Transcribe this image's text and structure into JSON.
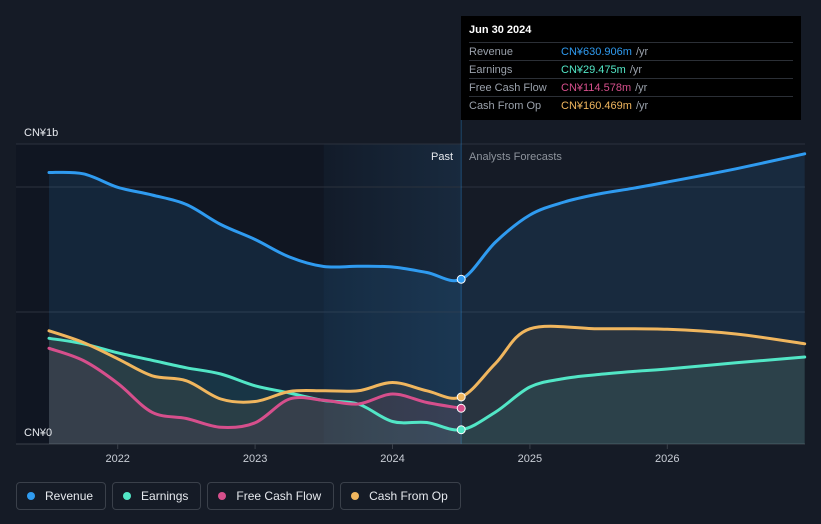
{
  "chart_data": {
    "type": "line",
    "y_axis": {
      "top_label": "CN¥1b",
      "bottom_label": "CN¥0",
      "ylim": [
        0,
        1200
      ]
    },
    "x_axis": {
      "xlim": [
        2021.5,
        2027.0
      ],
      "ticks": [
        2022,
        2023,
        2024,
        2025,
        2026
      ],
      "tick_labels": [
        "2022",
        "2023",
        "2024",
        "2025",
        "2026"
      ]
    },
    "divider_x": 2024.5,
    "past_start_x": 2023.5,
    "past_label": "Past",
    "forecast_label": "Analysts Forecasts",
    "colors": {
      "revenue": "#2f9bf0",
      "earnings": "#52e6c6",
      "free_cash_flow": "#d64f8c",
      "cash_from_op": "#f0b65e"
    },
    "series": [
      {
        "key": "revenue",
        "name": "Revenue",
        "color": "#2f9bf0",
        "points": [
          [
            2021.5,
            1058
          ],
          [
            2021.75,
            1053
          ],
          [
            2022.0,
            999
          ],
          [
            2022.25,
            968
          ],
          [
            2022.5,
            930
          ],
          [
            2022.75,
            850
          ],
          [
            2023.0,
            790
          ],
          [
            2023.25,
            720
          ],
          [
            2023.5,
            682
          ],
          [
            2023.75,
            683
          ],
          [
            2024.0,
            680
          ],
          [
            2024.25,
            658
          ],
          [
            2024.5,
            631
          ],
          [
            2024.75,
            780
          ],
          [
            2025.0,
            888
          ],
          [
            2025.25,
            940
          ],
          [
            2025.5,
            972
          ],
          [
            2025.75,
            995
          ],
          [
            2026.0,
            1020
          ],
          [
            2026.5,
            1073
          ],
          [
            2027.0,
            1133
          ]
        ]
      },
      {
        "key": "earnings",
        "name": "Earnings",
        "color": "#52e6c6",
        "points": [
          [
            2021.5,
            395
          ],
          [
            2021.75,
            373
          ],
          [
            2022.0,
            337
          ],
          [
            2022.25,
            307
          ],
          [
            2022.5,
            277
          ],
          [
            2022.75,
            252
          ],
          [
            2023.0,
            205
          ],
          [
            2023.25,
            176
          ],
          [
            2023.5,
            146
          ],
          [
            2023.75,
            132
          ],
          [
            2024.0,
            62
          ],
          [
            2024.25,
            58
          ],
          [
            2024.5,
            29
          ],
          [
            2024.75,
            100
          ],
          [
            2025.0,
            200
          ],
          [
            2025.25,
            234
          ],
          [
            2025.5,
            250
          ],
          [
            2025.75,
            262
          ],
          [
            2026.0,
            272
          ],
          [
            2026.5,
            297
          ],
          [
            2027.0,
            320
          ]
        ]
      },
      {
        "key": "free_cash_flow",
        "name": "Free Cash Flow",
        "color": "#d64f8c",
        "points": [
          [
            2021.5,
            355
          ],
          [
            2021.75,
            306
          ],
          [
            2022.0,
            215
          ],
          [
            2022.25,
            99
          ],
          [
            2022.5,
            74
          ],
          [
            2022.75,
            39
          ],
          [
            2023.0,
            57
          ],
          [
            2023.25,
            152
          ],
          [
            2023.5,
            147
          ],
          [
            2023.75,
            132
          ],
          [
            2024.0,
            172
          ],
          [
            2024.25,
            138
          ],
          [
            2024.5,
            115
          ]
        ]
      },
      {
        "key": "cash_from_op",
        "name": "Cash From Op",
        "color": "#f0b65e",
        "points": [
          [
            2021.5,
            425
          ],
          [
            2021.75,
            378
          ],
          [
            2022.0,
            313
          ],
          [
            2022.25,
            245
          ],
          [
            2022.5,
            225
          ],
          [
            2022.75,
            152
          ],
          [
            2023.0,
            142
          ],
          [
            2023.25,
            182
          ],
          [
            2023.5,
            185
          ],
          [
            2023.75,
            185
          ],
          [
            2024.0,
            218
          ],
          [
            2024.25,
            185
          ],
          [
            2024.5,
            160
          ],
          [
            2024.75,
            295
          ],
          [
            2025.0,
            433
          ],
          [
            2025.5,
            433
          ],
          [
            2026.0,
            431
          ],
          [
            2026.5,
            412
          ],
          [
            2027.0,
            373
          ]
        ]
      }
    ]
  },
  "tooltip": {
    "date": "Jun 30 2024",
    "rows": [
      {
        "name": "Revenue",
        "value": "CN¥630.906m",
        "unit": "/yr",
        "color": "#2f9bf0"
      },
      {
        "name": "Earnings",
        "value": "CN¥29.475m",
        "unit": "/yr",
        "color": "#52e6c6"
      },
      {
        "name": "Free Cash Flow",
        "value": "CN¥114.578m",
        "unit": "/yr",
        "color": "#d64f8c"
      },
      {
        "name": "Cash From Op",
        "value": "CN¥160.469m",
        "unit": "/yr",
        "color": "#f0b65e"
      }
    ]
  },
  "legend": [
    {
      "label": "Revenue",
      "color": "#2f9bf0"
    },
    {
      "label": "Earnings",
      "color": "#52e6c6"
    },
    {
      "label": "Free Cash Flow",
      "color": "#d64f8c"
    },
    {
      "label": "Cash From Op",
      "color": "#f0b65e"
    }
  ]
}
